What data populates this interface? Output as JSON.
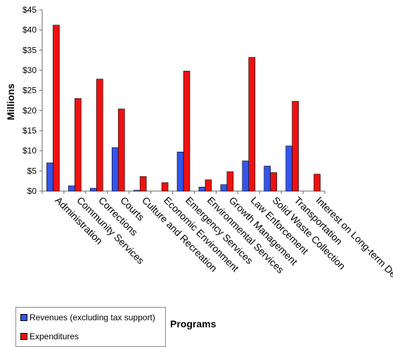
{
  "chart_data": {
    "type": "bar",
    "categories": [
      "Administration",
      "Community Services",
      "Corrections",
      "Courts",
      "Culture and Recreation",
      "Economic Environment",
      "Emergency Services",
      "Environmental Services",
      "Growth Management",
      "Law Enforcement",
      "Solid Waste Collection",
      "Transportation",
      "Interest on Long-term Debt"
    ],
    "series": [
      {
        "name": "Revenues (excluding tax support)",
        "color": "#3355ee",
        "values": [
          7.0,
          1.3,
          0.7,
          10.8,
          0.2,
          0.0,
          9.7,
          1.0,
          1.6,
          7.5,
          6.2,
          11.2,
          0.0
        ]
      },
      {
        "name": "Expenditures",
        "color": "#ee1111",
        "values": [
          41.2,
          23.0,
          27.8,
          20.4,
          3.6,
          2.1,
          29.8,
          2.8,
          4.8,
          33.2,
          4.6,
          22.3,
          4.2
        ]
      }
    ],
    "title": "",
    "xlabel": "Programs",
    "ylabel": "Millions",
    "ylim": [
      0,
      45
    ],
    "yticks": [
      "$0",
      "$5",
      "$10",
      "$15",
      "$20",
      "$25",
      "$30",
      "$35",
      "$40",
      "$45"
    ],
    "grid": false,
    "legend_position": "bottom-left"
  }
}
